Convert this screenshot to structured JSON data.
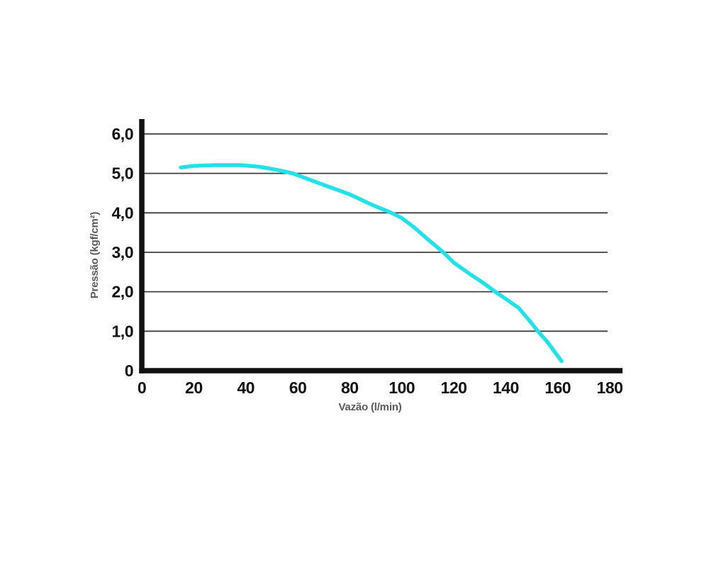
{
  "page": {
    "background_color": "#ffffff"
  },
  "chart_data": {
    "type": "line",
    "title": "",
    "xlabel": "Vazão (l/min)",
    "ylabel": "Pressão (kgf/cm²)",
    "x_tick_values": [
      0,
      20,
      40,
      60,
      80,
      100,
      120,
      140,
      160,
      180
    ],
    "x_tick_labels": [
      "0",
      "20",
      "40",
      "60",
      "80",
      "100",
      "120",
      "140",
      "160",
      "180"
    ],
    "y_tick_values": [
      0,
      1,
      2,
      3,
      4,
      5,
      6
    ],
    "y_tick_labels": [
      "0",
      "1,0",
      "2,0",
      "3,0",
      "4,0",
      "5,0",
      "6,0"
    ],
    "xlim": [
      0,
      184
    ],
    "ylim": [
      0,
      6.35
    ],
    "grid": "horizontal-only",
    "legend": "none",
    "colors": {
      "series": "#22E1E9",
      "grid": "#3f3f3f",
      "axis": "#111111",
      "tick_labels": "#111111",
      "axis_titles": "#5a5a5a"
    },
    "series": [
      {
        "name": "pressao-vs-vazao",
        "x": [
          15,
          20,
          28,
          38,
          45,
          52,
          58,
          65,
          72,
          80,
          88,
          96,
          100,
          105,
          110,
          116,
          120,
          126,
          131,
          136,
          140,
          145,
          149,
          152,
          156,
          159,
          161.5
        ],
        "y": [
          5.15,
          5.19,
          5.21,
          5.21,
          5.17,
          5.09,
          5.0,
          4.83,
          4.66,
          4.47,
          4.22,
          4.0,
          3.87,
          3.62,
          3.33,
          3.0,
          2.74,
          2.46,
          2.24,
          2.0,
          1.82,
          1.59,
          1.28,
          1.03,
          0.73,
          0.46,
          0.24
        ]
      }
    ]
  }
}
